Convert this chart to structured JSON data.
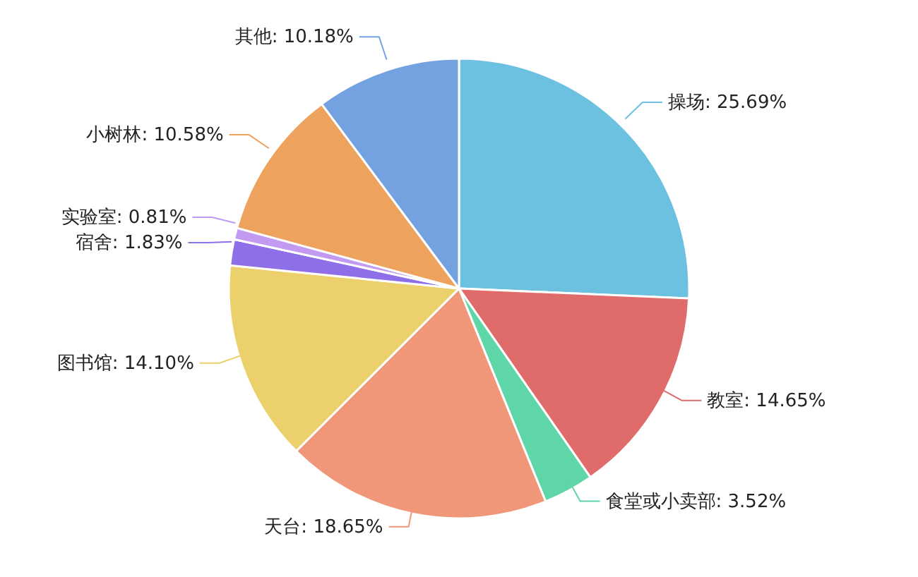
{
  "chart_data": {
    "type": "pie",
    "categories": [
      "操场",
      "教室",
      "食堂或小卖部",
      "天台",
      "图书馆",
      "宿舍",
      "实验室",
      "小树林",
      "其他"
    ],
    "values": [
      25.69,
      14.65,
      3.52,
      18.65,
      14.1,
      1.83,
      0.81,
      10.58,
      10.18
    ],
    "value_labels": [
      "25.69%",
      "14.65%",
      "3.52%",
      "18.65%",
      "14.10%",
      "1.83%",
      "0.81%",
      "10.58%",
      "10.18%"
    ],
    "colors": [
      "#6cc0e0",
      "#e06b6b",
      "#5ed6a8",
      "#f0977a",
      "#ecd06b",
      "#8f6fe8",
      "#c29af2",
      "#eda25e",
      "#74a2e0"
    ]
  }
}
